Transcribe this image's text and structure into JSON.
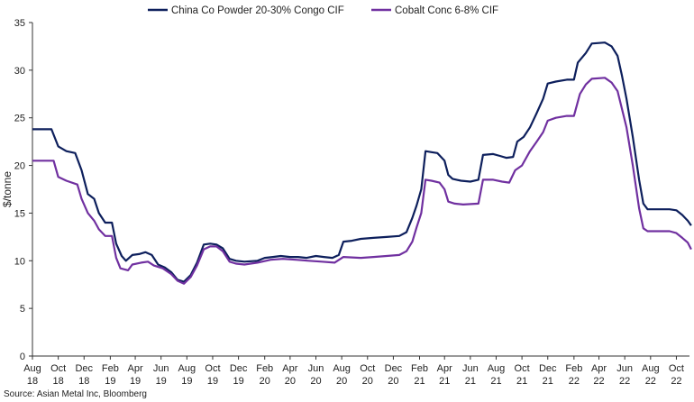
{
  "chart_data": {
    "type": "line",
    "ylabel": "$/tonne",
    "xlabel": "",
    "ylim": [
      0,
      35
    ],
    "yticks": [
      0,
      5,
      10,
      15,
      20,
      25,
      30,
      35
    ],
    "x_range": [
      "2018-08",
      "2022-11"
    ],
    "grid": false,
    "legend_position": "top-center",
    "x_tick_labels": [
      {
        "date": "2018-08",
        "month": "Aug",
        "year": "18"
      },
      {
        "date": "2018-10",
        "month": "Oct",
        "year": "18"
      },
      {
        "date": "2018-12",
        "month": "Dec",
        "year": "18"
      },
      {
        "date": "2019-02",
        "month": "Feb",
        "year": "19"
      },
      {
        "date": "2019-04",
        "month": "Apr",
        "year": "19"
      },
      {
        "date": "2019-06",
        "month": "Jun",
        "year": "19"
      },
      {
        "date": "2019-08",
        "month": "Aug",
        "year": "19"
      },
      {
        "date": "2019-10",
        "month": "Oct",
        "year": "19"
      },
      {
        "date": "2019-12",
        "month": "Dec",
        "year": "19"
      },
      {
        "date": "2020-02",
        "month": "Feb",
        "year": "20"
      },
      {
        "date": "2020-04",
        "month": "Apr",
        "year": "20"
      },
      {
        "date": "2020-06",
        "month": "Jun",
        "year": "20"
      },
      {
        "date": "2020-08",
        "month": "Aug",
        "year": "20"
      },
      {
        "date": "2020-10",
        "month": "Oct",
        "year": "20"
      },
      {
        "date": "2020-12",
        "month": "Dec",
        "year": "20"
      },
      {
        "date": "2021-02",
        "month": "Feb",
        "year": "21"
      },
      {
        "date": "2021-04",
        "month": "Apr",
        "year": "21"
      },
      {
        "date": "2021-06",
        "month": "Jun",
        "year": "21"
      },
      {
        "date": "2021-08",
        "month": "Aug",
        "year": "21"
      },
      {
        "date": "2021-10",
        "month": "Oct",
        "year": "21"
      },
      {
        "date": "2021-12",
        "month": "Dec",
        "year": "21"
      },
      {
        "date": "2022-02",
        "month": "Feb",
        "year": "22"
      },
      {
        "date": "2022-04",
        "month": "Apr",
        "year": "22"
      },
      {
        "date": "2022-06",
        "month": "Jun",
        "year": "22"
      },
      {
        "date": "2022-08",
        "month": "Aug",
        "year": "22"
      },
      {
        "date": "2022-10",
        "month": "Oct",
        "year": "22"
      }
    ],
    "series": [
      {
        "name": "China Co Powder 20-30% Congo CIF",
        "color": "#0d1f5c",
        "points": [
          [
            "2018-08-01",
            23.8
          ],
          [
            "2018-09-15",
            23.8
          ],
          [
            "2018-10-01",
            22.0
          ],
          [
            "2018-10-20",
            21.5
          ],
          [
            "2018-11-10",
            21.3
          ],
          [
            "2018-11-25",
            19.5
          ],
          [
            "2018-12-10",
            17.0
          ],
          [
            "2018-12-25",
            16.5
          ],
          [
            "2019-01-05",
            15.0
          ],
          [
            "2019-01-20",
            14.0
          ],
          [
            "2019-02-05",
            14.0
          ],
          [
            "2019-02-15",
            11.8
          ],
          [
            "2019-02-28",
            10.5
          ],
          [
            "2019-03-10",
            10.0
          ],
          [
            "2019-03-25",
            10.6
          ],
          [
            "2019-04-10",
            10.7
          ],
          [
            "2019-04-25",
            10.9
          ],
          [
            "2019-05-10",
            10.6
          ],
          [
            "2019-05-25",
            9.6
          ],
          [
            "2019-06-10",
            9.3
          ],
          [
            "2019-06-25",
            8.8
          ],
          [
            "2019-07-10",
            8.0
          ],
          [
            "2019-07-25",
            7.8
          ],
          [
            "2019-08-10",
            8.5
          ],
          [
            "2019-08-25",
            9.8
          ],
          [
            "2019-09-10",
            11.7
          ],
          [
            "2019-09-25",
            11.8
          ],
          [
            "2019-10-10",
            11.7
          ],
          [
            "2019-10-25",
            11.3
          ],
          [
            "2019-11-10",
            10.2
          ],
          [
            "2019-11-25",
            10.0
          ],
          [
            "2019-12-15",
            9.9
          ],
          [
            "2020-01-15",
            10.0
          ],
          [
            "2020-02-01",
            10.3
          ],
          [
            "2020-02-20",
            10.4
          ],
          [
            "2020-03-10",
            10.5
          ],
          [
            "2020-04-01",
            10.4
          ],
          [
            "2020-04-20",
            10.4
          ],
          [
            "2020-05-10",
            10.3
          ],
          [
            "2020-06-01",
            10.5
          ],
          [
            "2020-06-20",
            10.4
          ],
          [
            "2020-07-10",
            10.3
          ],
          [
            "2020-07-25",
            10.6
          ],
          [
            "2020-08-05",
            12.0
          ],
          [
            "2020-08-25",
            12.1
          ],
          [
            "2020-09-15",
            12.3
          ],
          [
            "2020-10-15",
            12.4
          ],
          [
            "2020-11-15",
            12.5
          ],
          [
            "2020-12-15",
            12.6
          ],
          [
            "2021-01-01",
            13.0
          ],
          [
            "2021-01-15",
            14.5
          ],
          [
            "2021-01-25",
            15.8
          ],
          [
            "2021-02-05",
            17.5
          ],
          [
            "2021-02-15",
            21.5
          ],
          [
            "2021-03-01",
            21.4
          ],
          [
            "2021-03-15",
            21.3
          ],
          [
            "2021-04-01",
            20.5
          ],
          [
            "2021-04-10",
            19.0
          ],
          [
            "2021-04-20",
            18.6
          ],
          [
            "2021-05-10",
            18.4
          ],
          [
            "2021-06-01",
            18.3
          ],
          [
            "2021-06-20",
            18.5
          ],
          [
            "2021-07-01",
            21.1
          ],
          [
            "2021-07-25",
            21.2
          ],
          [
            "2021-08-10",
            21.0
          ],
          [
            "2021-08-25",
            20.8
          ],
          [
            "2021-09-10",
            20.9
          ],
          [
            "2021-09-20",
            22.5
          ],
          [
            "2021-10-05",
            23.0
          ],
          [
            "2021-10-20",
            24.0
          ],
          [
            "2021-11-05",
            25.5
          ],
          [
            "2021-11-20",
            27.0
          ],
          [
            "2021-12-01",
            28.6
          ],
          [
            "2021-12-20",
            28.8
          ],
          [
            "2022-01-15",
            29.0
          ],
          [
            "2022-02-01",
            29.0
          ],
          [
            "2022-02-10",
            30.8
          ],
          [
            "2022-03-01",
            31.8
          ],
          [
            "2022-03-15",
            32.8
          ],
          [
            "2022-04-15",
            32.9
          ],
          [
            "2022-05-01",
            32.5
          ],
          [
            "2022-05-15",
            31.5
          ],
          [
            "2022-05-25",
            29.5
          ],
          [
            "2022-06-05",
            27.0
          ],
          [
            "2022-06-20",
            23.0
          ],
          [
            "2022-07-05",
            18.5
          ],
          [
            "2022-07-15",
            16.0
          ],
          [
            "2022-07-25",
            15.4
          ],
          [
            "2022-08-15",
            15.4
          ],
          [
            "2022-09-15",
            15.4
          ],
          [
            "2022-10-01",
            15.3
          ],
          [
            "2022-10-15",
            14.8
          ],
          [
            "2022-10-28",
            14.2
          ],
          [
            "2022-11-05",
            13.7
          ]
        ]
      },
      {
        "name": "Cobalt Conc 6-8% CIF",
        "color": "#7030a0",
        "points": [
          [
            "2018-08-01",
            20.5
          ],
          [
            "2018-09-20",
            20.5
          ],
          [
            "2018-10-01",
            18.8
          ],
          [
            "2018-10-20",
            18.4
          ],
          [
            "2018-11-15",
            18.0
          ],
          [
            "2018-11-25",
            16.5
          ],
          [
            "2018-12-10",
            15.0
          ],
          [
            "2018-12-25",
            14.2
          ],
          [
            "2019-01-05",
            13.3
          ],
          [
            "2019-01-20",
            12.6
          ],
          [
            "2019-02-05",
            12.6
          ],
          [
            "2019-02-15",
            10.3
          ],
          [
            "2019-02-25",
            9.2
          ],
          [
            "2019-03-15",
            9.0
          ],
          [
            "2019-03-25",
            9.6
          ],
          [
            "2019-04-15",
            9.8
          ],
          [
            "2019-05-01",
            9.9
          ],
          [
            "2019-05-15",
            9.5
          ],
          [
            "2019-06-05",
            9.2
          ],
          [
            "2019-06-25",
            8.6
          ],
          [
            "2019-07-10",
            7.9
          ],
          [
            "2019-07-25",
            7.6
          ],
          [
            "2019-08-10",
            8.3
          ],
          [
            "2019-08-25",
            9.5
          ],
          [
            "2019-09-10",
            11.2
          ],
          [
            "2019-09-25",
            11.5
          ],
          [
            "2019-10-10",
            11.5
          ],
          [
            "2019-10-25",
            11.0
          ],
          [
            "2019-11-10",
            9.9
          ],
          [
            "2019-11-25",
            9.7
          ],
          [
            "2019-12-15",
            9.6
          ],
          [
            "2020-01-15",
            9.8
          ],
          [
            "2020-02-15",
            10.1
          ],
          [
            "2020-03-15",
            10.2
          ],
          [
            "2020-04-15",
            10.1
          ],
          [
            "2020-05-15",
            10.0
          ],
          [
            "2020-06-15",
            9.9
          ],
          [
            "2020-07-15",
            9.8
          ],
          [
            "2020-08-05",
            10.4
          ],
          [
            "2020-09-15",
            10.3
          ],
          [
            "2020-10-15",
            10.4
          ],
          [
            "2020-11-15",
            10.5
          ],
          [
            "2020-12-15",
            10.6
          ],
          [
            "2021-01-01",
            11.0
          ],
          [
            "2021-01-15",
            12.0
          ],
          [
            "2021-01-25",
            13.5
          ],
          [
            "2021-02-05",
            15.0
          ],
          [
            "2021-02-15",
            18.5
          ],
          [
            "2021-03-01",
            18.4
          ],
          [
            "2021-03-20",
            18.2
          ],
          [
            "2021-04-01",
            17.5
          ],
          [
            "2021-04-10",
            16.2
          ],
          [
            "2021-04-25",
            16.0
          ],
          [
            "2021-05-15",
            15.9
          ],
          [
            "2021-06-20",
            16.0
          ],
          [
            "2021-07-01",
            18.5
          ],
          [
            "2021-07-25",
            18.5
          ],
          [
            "2021-08-15",
            18.3
          ],
          [
            "2021-09-01",
            18.2
          ],
          [
            "2021-09-15",
            19.5
          ],
          [
            "2021-10-01",
            20.0
          ],
          [
            "2021-10-20",
            21.5
          ],
          [
            "2021-11-05",
            22.5
          ],
          [
            "2021-11-20",
            23.5
          ],
          [
            "2021-12-01",
            24.7
          ],
          [
            "2021-12-20",
            25.0
          ],
          [
            "2022-01-15",
            25.2
          ],
          [
            "2022-02-01",
            25.2
          ],
          [
            "2022-02-15",
            27.5
          ],
          [
            "2022-03-01",
            28.5
          ],
          [
            "2022-03-15",
            29.1
          ],
          [
            "2022-04-15",
            29.2
          ],
          [
            "2022-05-01",
            28.7
          ],
          [
            "2022-05-15",
            27.8
          ],
          [
            "2022-05-25",
            26.0
          ],
          [
            "2022-06-05",
            24.0
          ],
          [
            "2022-06-20",
            20.0
          ],
          [
            "2022-07-05",
            15.5
          ],
          [
            "2022-07-15",
            13.4
          ],
          [
            "2022-07-25",
            13.1
          ],
          [
            "2022-09-15",
            13.1
          ],
          [
            "2022-10-01",
            12.9
          ],
          [
            "2022-10-15",
            12.4
          ],
          [
            "2022-10-28",
            11.9
          ],
          [
            "2022-11-05",
            11.2
          ]
        ]
      }
    ]
  },
  "source": "Source: Asian Metal Inc, Bloomberg"
}
